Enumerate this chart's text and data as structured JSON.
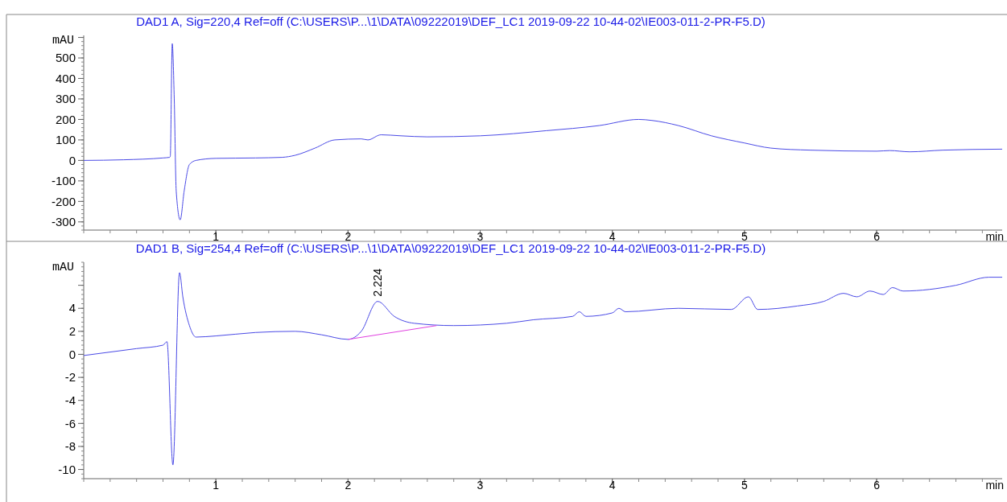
{
  "chart_data": [
    {
      "type": "line",
      "title": "DAD1 A, Sig=220,4 Ref=off (C:\\USERS\\P...\\1\\DATA\\09222019\\DEF_LC1 2019-09-22 10-44-02\\IE003-011-2-PR-F5.D)",
      "xlabel": "min",
      "ylabel": "mAU",
      "xlim": [
        0,
        6.95
      ],
      "xticks": [
        1,
        2,
        3,
        4,
        5,
        6
      ],
      "ylim": [
        -340,
        610
      ],
      "yticks": [
        -300,
        -200,
        -100,
        0,
        100,
        200,
        300,
        400,
        500,
        {
          "value": 600,
          "label": null
        }
      ],
      "grid": false,
      "marker": "none",
      "line_style": "solid",
      "series": [
        {
          "color": "#4a4ae6",
          "x": [
            0,
            0.3,
            0.6,
            0.65,
            0.655,
            0.67,
            0.685,
            0.7,
            0.73,
            0.76,
            0.8,
            0.85,
            1.0,
            1.3,
            1.5,
            1.6,
            1.75,
            1.9,
            2.1,
            2.15,
            2.25,
            2.4,
            2.6,
            3.0,
            3.5,
            3.9,
            4.2,
            4.3,
            4.5,
            4.75,
            5.0,
            5.2,
            5.5,
            6.0,
            6.1,
            6.25,
            6.5,
            6.95
          ],
          "values": [
            0,
            3,
            12,
            15,
            20,
            570,
            300,
            -150,
            -290,
            -150,
            -20,
            0,
            10,
            12,
            15,
            25,
            60,
            100,
            105,
            100,
            125,
            120,
            115,
            120,
            145,
            170,
            200,
            195,
            170,
            120,
            85,
            60,
            50,
            45,
            48,
            42,
            50,
            55
          ]
        }
      ]
    },
    {
      "type": "line",
      "title": "DAD1 B, Sig=254,4 Ref=off (C:\\USERS\\P...\\1\\DATA\\09222019\\DEF_LC1 2019-09-22 10-44-02\\IE003-011-2-PR-F5.D)",
      "xlabel": "min",
      "ylabel": "mAU",
      "xlim": [
        0,
        6.95
      ],
      "xticks": [
        1,
        2,
        3,
        4,
        5,
        6
      ],
      "ylim": [
        -10.8,
        8
      ],
      "yticks": [
        -10,
        -8,
        -6,
        -4,
        -2,
        0,
        2,
        4,
        {
          "value": 6,
          "label": null
        }
      ],
      "grid": false,
      "marker": "none",
      "line_style": "solid",
      "annotations": [
        {
          "text": "2.224",
          "x": 2.224,
          "y": 4.6
        }
      ],
      "series": [
        {
          "color": "#4a4ae6",
          "x": [
            0,
            0.4,
            0.6,
            0.63,
            0.675,
            0.725,
            0.75,
            0.8,
            0.85,
            1.0,
            1.3,
            1.6,
            1.8,
            2.0,
            2.1,
            2.224,
            2.35,
            2.5,
            2.8,
            3.2,
            3.4,
            3.7,
            3.75,
            3.8,
            4.0,
            4.05,
            4.1,
            4.5,
            4.9,
            5.03,
            5.1,
            5.4,
            5.6,
            5.75,
            5.85,
            5.95,
            6.05,
            6.12,
            6.2,
            6.6,
            6.85,
            6.95
          ],
          "values": [
            -0.1,
            0.5,
            0.8,
            1.1,
            -9.6,
            7.1,
            5.0,
            2.5,
            1.5,
            1.6,
            1.9,
            2.0,
            1.7,
            1.3,
            2.0,
            4.6,
            3.3,
            2.7,
            2.5,
            2.7,
            3.0,
            3.3,
            3.7,
            3.3,
            3.6,
            4.0,
            3.7,
            4.0,
            3.9,
            5.0,
            3.9,
            4.2,
            4.6,
            5.3,
            5.0,
            5.5,
            5.2,
            5.8,
            5.5,
            6.0,
            6.7,
            6.7
          ]
        },
        {
          "color": "#e040e0",
          "x": [
            2.0,
            2.67
          ],
          "values": [
            1.3,
            2.5
          ]
        }
      ]
    }
  ]
}
